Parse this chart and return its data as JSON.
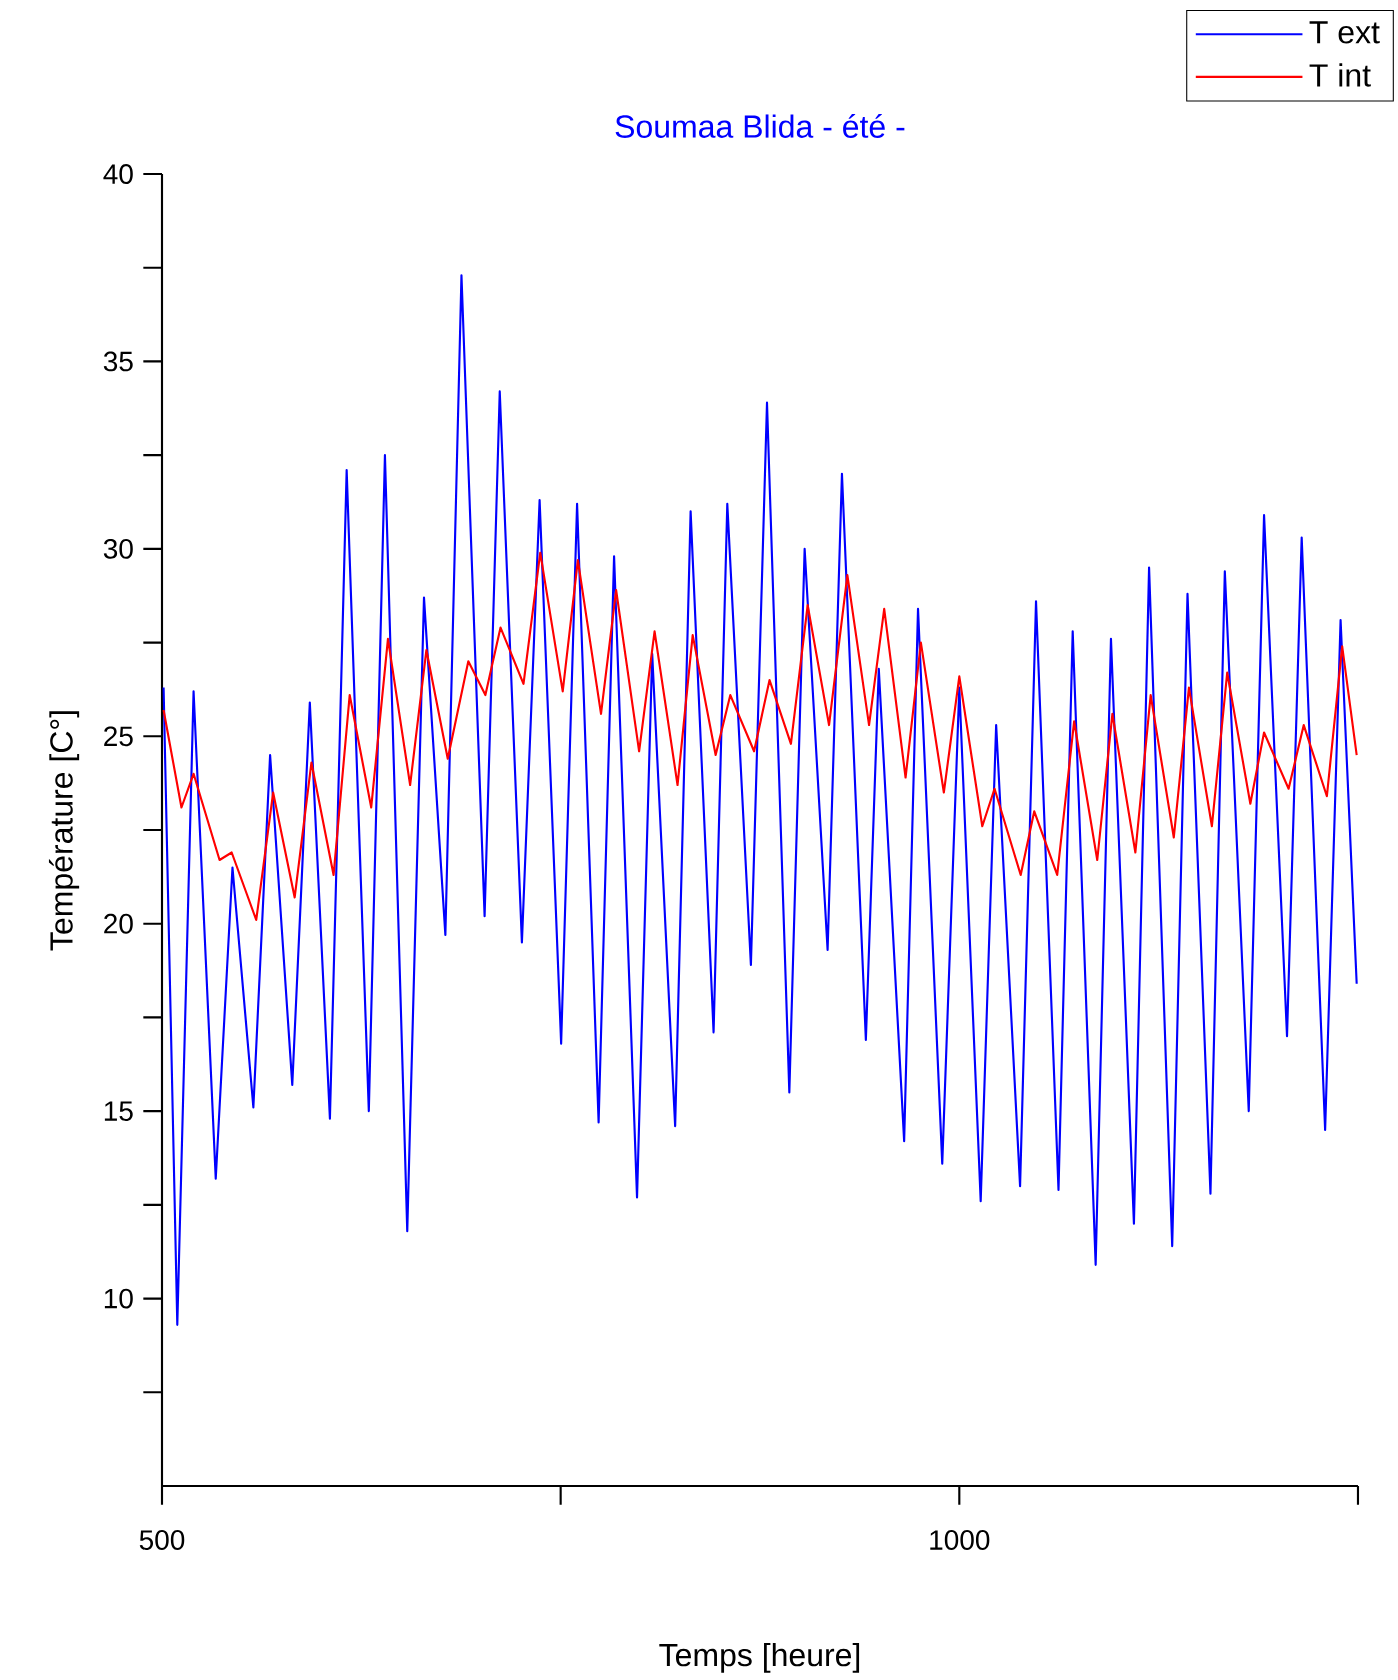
{
  "chart_data": {
    "type": "line",
    "title": "Soumaa Blida - été -",
    "xlabel": "Temps [heure]",
    "ylabel": "Température [C°]",
    "xlim": [
      500,
      1250
    ],
    "xticks": [
      500,
      {
        "value": 750,
        "label": null
      },
      1000,
      {
        "value": 1250,
        "label": null
      }
    ],
    "ylim": [
      5,
      40
    ],
    "yticks": [
      {
        "value": 7.5,
        "label": null
      },
      10,
      {
        "value": 12.5,
        "label": null
      },
      15,
      {
        "value": 17.5,
        "label": null
      },
      20,
      {
        "value": 22.5,
        "label": null
      },
      25,
      {
        "value": 27.5,
        "label": null
      },
      30,
      {
        "value": 32.5,
        "label": null
      },
      35,
      {
        "value": 37.5,
        "label": null
      },
      40
    ],
    "legend": "top right",
    "series": [
      {
        "name": "T ext",
        "color": "#0000ff",
        "x": [
          501,
          509.6,
          519.8,
          533.7,
          544.2,
          557.3,
          567.8,
          581.7,
          592.7,
          605.3,
          615.8,
          629.7,
          639.8,
          653.8,
          664.3,
          677.7,
          687.8,
          702.3,
          711.8,
          725.7,
          736.8,
          750.3,
          760.3,
          773.8,
          783.5,
          797.9,
          807.4,
          821.8,
          831.5,
          845.9,
          854.5,
          869.3,
          879.4,
          893.4,
          903,
          917.4,
          926.4,
          941.4,
          949.5,
          965.4,
          974.1,
          989.3,
          1000,
          1013.4,
          1023.1,
          1038.1,
          1048.1,
          1062.2,
          1071.1,
          1085.5,
          1095.1,
          1109.5,
          1119,
          1133.5,
          1143.1,
          1157.5,
          1166.5,
          1181.5,
          1191.1,
          1205.5,
          1214.7,
          1229.4,
          1239.1,
          1249.2
        ],
        "values": [
          26.3,
          9.3,
          26.2,
          13.2,
          21.5,
          15.1,
          24.5,
          15.7,
          25.9,
          14.8,
          32.1,
          15.0,
          32.5,
          11.8,
          28.7,
          19.7,
          37.3,
          20.2,
          34.2,
          19.5,
          31.3,
          16.8,
          31.2,
          14.7,
          29.8,
          12.7,
          27.2,
          14.6,
          31.0,
          17.1,
          31.2,
          18.9,
          33.9,
          15.5,
          30.0,
          19.3,
          32.0,
          16.9,
          26.8,
          14.2,
          28.4,
          13.6,
          26.3,
          12.6,
          25.3,
          13.0,
          28.6,
          12.9,
          27.8,
          10.9,
          27.6,
          12.0,
          29.5,
          11.4,
          28.8,
          12.8,
          29.4,
          15.0,
          30.9,
          17.0,
          30.3,
          14.5,
          28.1,
          18.4
        ]
      },
      {
        "name": "T int",
        "color": "#ff0000",
        "x": [
          501,
          512.2,
          519.8,
          536.1,
          543.7,
          559.1,
          569.7,
          583.2,
          593.7,
          607.6,
          617.7,
          631.2,
          641.7,
          655.6,
          665.8,
          679.2,
          692.1,
          702.8,
          712.3,
          726.7,
          737.2,
          751.3,
          760.8,
          775.3,
          784.8,
          799.2,
          808.9,
          823.3,
          832.8,
          847.2,
          856.4,
          871.3,
          881,
          894.4,
          904.9,
          918.3,
          929.8,
          943.4,
          952.9,
          966.3,
          975.9,
          990.3,
          1000,
          1014.4,
          1022.1,
          1038.5,
          1047,
          1061.4,
          1072,
          1086.5,
          1096,
          1110.4,
          1120,
          1134.5,
          1144,
          1158.4,
          1168,
          1182.5,
          1191.1,
          1206.5,
          1216,
          1230.5,
          1240.1,
          1249.2
        ],
        "values": [
          25.7,
          23.1,
          24.0,
          21.7,
          21.9,
          20.1,
          23.5,
          20.7,
          24.3,
          21.3,
          26.1,
          23.1,
          27.6,
          23.7,
          27.3,
          24.4,
          27.0,
          26.1,
          27.9,
          26.4,
          29.9,
          26.2,
          29.7,
          25.6,
          28.9,
          24.6,
          27.8,
          23.7,
          27.7,
          24.5,
          26.1,
          24.6,
          26.5,
          24.8,
          28.5,
          25.3,
          29.3,
          25.3,
          28.4,
          23.9,
          27.5,
          23.5,
          26.6,
          22.6,
          23.6,
          21.3,
          23.0,
          21.3,
          25.4,
          21.7,
          25.6,
          21.9,
          26.1,
          22.3,
          26.3,
          22.6,
          26.7,
          23.2,
          25.1,
          23.6,
          25.3,
          23.4,
          27.4,
          24.5
        ]
      }
    ]
  }
}
